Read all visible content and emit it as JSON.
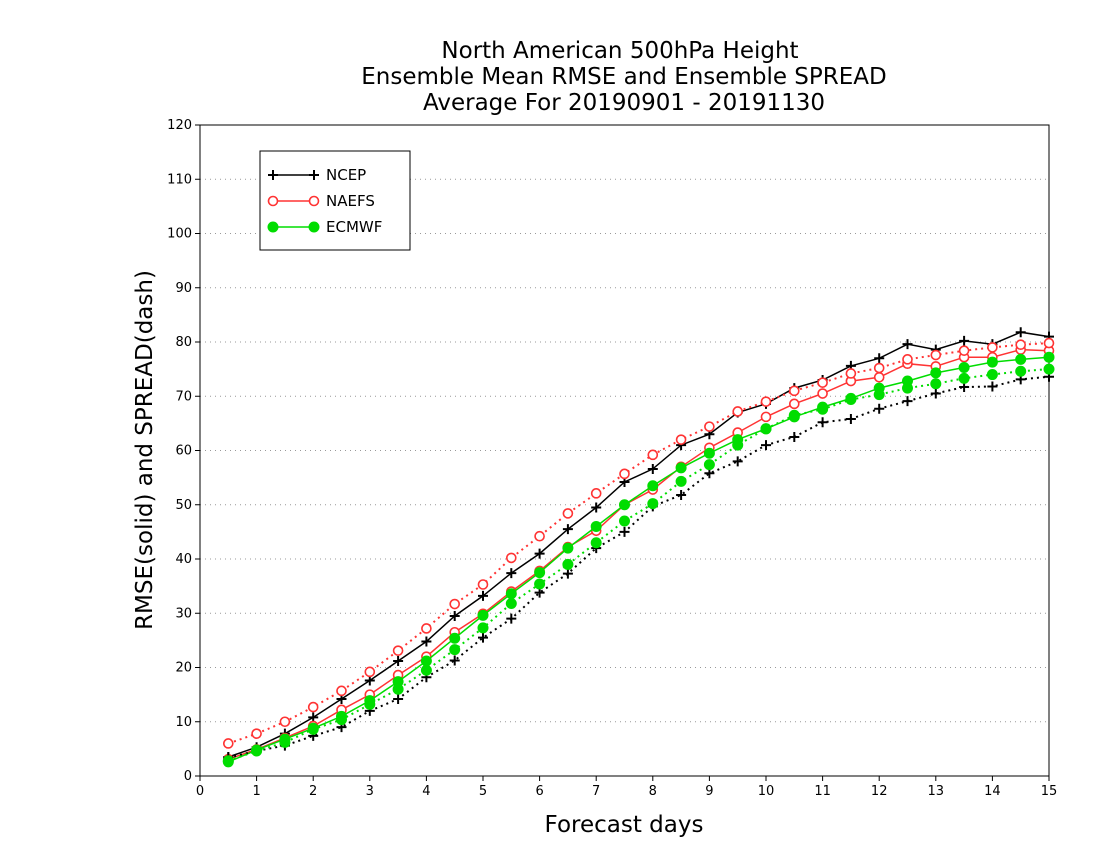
{
  "chart_data": {
    "type": "line",
    "title": [
      "North American 500hPa Height",
      "Ensemble Mean RMSE and Ensemble SPREAD",
      "Average For 20190901 - 20191130"
    ],
    "xlabel": "Forecast days",
    "ylabel": "RMSE(solid) and SPREAD(dash)",
    "xlim": [
      0,
      15
    ],
    "ylim": [
      0,
      120
    ],
    "x_ticks": [
      "0",
      "1",
      "2",
      "3",
      "4",
      "5",
      "6",
      "7",
      "8",
      "9",
      "10",
      "11",
      "12",
      "13",
      "14",
      "15"
    ],
    "y_ticks": [
      "0",
      "10",
      "20",
      "30",
      "40",
      "50",
      "60",
      "70",
      "80",
      "90",
      "100",
      "110",
      "120"
    ],
    "grid": true,
    "legend_position": "top-left",
    "x": [
      0.5,
      1,
      1.5,
      2,
      2.5,
      3,
      3.5,
      4,
      4.5,
      5,
      5.5,
      6,
      6.5,
      7,
      7.5,
      8,
      8.5,
      9,
      9.5,
      10,
      10.5,
      11,
      11.5,
      12,
      12.5,
      13,
      13.5,
      14,
      14.5,
      15
    ],
    "series": [
      {
        "name": "NCEP",
        "metric": "RMSE",
        "style": "solid",
        "color": "#000000",
        "marker": "plus",
        "values": [
          3.5,
          5.3,
          7.8,
          10.8,
          14.2,
          17.6,
          21.2,
          24.8,
          29.5,
          33.2,
          37.4,
          41.0,
          45.5,
          49.5,
          54.2,
          56.6,
          61.0,
          63.0,
          67.0,
          68.6,
          71.5,
          73.0,
          75.6,
          77.0,
          79.6,
          78.6,
          80.2,
          79.6,
          81.8,
          81.0
        ]
      },
      {
        "name": "NAEFS",
        "metric": "RMSE",
        "style": "solid",
        "color": "#ff3333",
        "marker": "open-circle",
        "values": [
          3.1,
          4.9,
          7.0,
          9.2,
          12.2,
          15.0,
          18.6,
          22.0,
          26.5,
          29.9,
          34.0,
          37.8,
          42.2,
          45.2,
          50.0,
          52.8,
          57.0,
          60.5,
          63.3,
          66.2,
          68.6,
          70.5,
          72.8,
          73.5,
          76.0,
          75.5,
          77.2,
          77.2,
          78.6,
          78.4
        ]
      },
      {
        "name": "ECMWF",
        "metric": "RMSE",
        "style": "solid",
        "color": "#00dd00",
        "marker": "filled-circle",
        "values": [
          2.6,
          4.8,
          6.8,
          8.8,
          11.0,
          13.9,
          17.4,
          21.2,
          25.4,
          29.6,
          33.6,
          37.5,
          42.0,
          46.0,
          50.0,
          53.5,
          56.8,
          59.5,
          62.0,
          64.0,
          66.2,
          68.0,
          69.6,
          71.5,
          72.8,
          74.3,
          75.3,
          76.3,
          76.8,
          77.2
        ]
      },
      {
        "name": "NCEP",
        "metric": "SPREAD",
        "style": "dotted",
        "color": "#000000",
        "marker": "plus",
        "values": [
          3.4,
          4.6,
          5.6,
          7.4,
          9.0,
          12.0,
          14.2,
          18.2,
          21.3,
          25.5,
          29.0,
          33.8,
          37.3,
          42.0,
          45.0,
          49.7,
          51.8,
          55.8,
          58.0,
          61.0,
          62.5,
          65.2,
          65.8,
          67.7,
          69.1,
          70.5,
          71.7,
          71.8,
          73.1,
          73.6
        ]
      },
      {
        "name": "NAEFS",
        "metric": "SPREAD",
        "style": "dotted",
        "color": "#ff3333",
        "marker": "open-circle",
        "values": [
          6.0,
          7.8,
          10.0,
          12.7,
          15.7,
          19.2,
          23.1,
          27.2,
          31.7,
          35.3,
          40.2,
          44.2,
          48.4,
          52.1,
          55.7,
          59.2,
          62.0,
          64.4,
          67.2,
          69.0,
          71.0,
          72.5,
          74.2,
          75.2,
          76.8,
          77.6,
          78.4,
          79.0,
          79.5,
          79.8
        ]
      },
      {
        "name": "ECMWF",
        "metric": "SPREAD",
        "style": "dotted",
        "color": "#00dd00",
        "marker": "filled-circle",
        "values": [
          2.8,
          4.6,
          6.2,
          8.6,
          10.4,
          13.2,
          16.0,
          19.5,
          23.3,
          27.3,
          31.8,
          35.4,
          39.0,
          43.0,
          47.0,
          50.2,
          54.3,
          57.4,
          61.0,
          64.0,
          66.5,
          67.6,
          69.4,
          70.3,
          71.5,
          72.3,
          73.3,
          74.0,
          74.6,
          75.0
        ]
      }
    ],
    "legend": [
      {
        "label": "NCEP",
        "color": "#000000",
        "marker": "plus"
      },
      {
        "label": "NAEFS",
        "color": "#ff3333",
        "marker": "open-circle"
      },
      {
        "label": "ECMWF",
        "color": "#00dd00",
        "marker": "filled-circle"
      }
    ]
  }
}
